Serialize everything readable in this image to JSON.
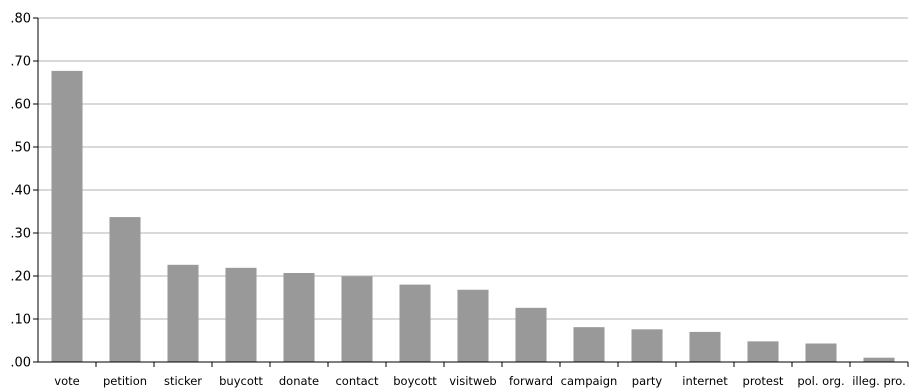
{
  "chart_data": {
    "type": "bar",
    "title": "",
    "xlabel": "",
    "ylabel": "",
    "categories": [
      "vote",
      "petition",
      "sticker",
      "buycott",
      "donate",
      "contact",
      "boycott",
      "visitweb",
      "forward",
      "campaign",
      "party",
      "internet",
      "protest",
      "pol. org.",
      "illeg. pro."
    ],
    "values": [
      0.677,
      0.337,
      0.226,
      0.219,
      0.207,
      0.199,
      0.18,
      0.168,
      0.126,
      0.081,
      0.076,
      0.07,
      0.048,
      0.043,
      0.01
    ],
    "ylim": [
      0,
      0.8
    ],
    "yticks": [
      0,
      0.1,
      0.2,
      0.3,
      0.4,
      0.5,
      0.6,
      0.7,
      0.8
    ],
    "ytick_labels": [
      ".00",
      ".10",
      ".20",
      ".30",
      ".40",
      ".50",
      ".60",
      ".70",
      ".80"
    ],
    "grid": true,
    "legend": "none",
    "bar_color": "#999999",
    "grid_color": "#b3b3b3",
    "axis_color": "#000000"
  }
}
